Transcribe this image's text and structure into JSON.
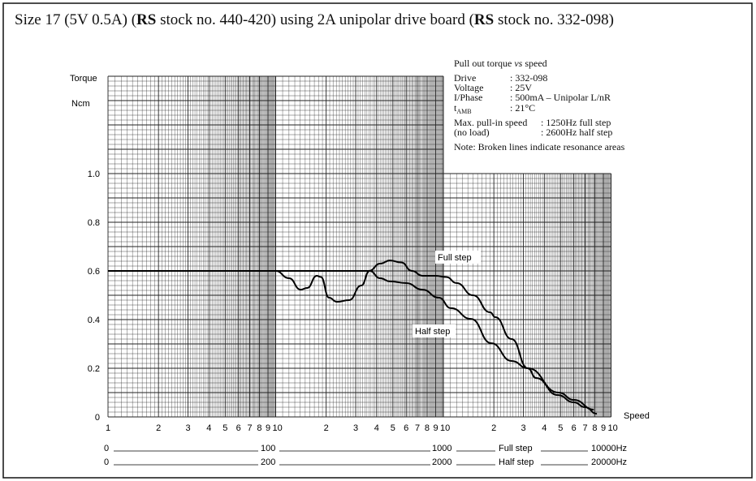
{
  "title": {
    "pre1": "Size 17 (5V 0.5A) (",
    "rs1": "RS",
    "mid": " stock no. 440-420) using 2A unipolar drive board (",
    "rs2": "RS",
    "post": " stock no. 332-098)"
  },
  "info": {
    "heading_pre": "Pull out torque ",
    "heading_vs": "vs",
    "heading_post": " speed",
    "rows": [
      {
        "label": "Drive",
        "value": ": 332-098"
      },
      {
        "label": "Voltage",
        "value": ": 25V"
      },
      {
        "label": "I/Phase",
        "value": ": 500mA – Unipolar L/nR"
      },
      {
        "label": "t",
        "sub": "AMB",
        "value": ": 21°C"
      }
    ],
    "pullin_label": "Max. pull-in speed",
    "pullin_full": ":  1250Hz full step",
    "noload_label": "(no load)",
    "pullin_half": ":  2600Hz half step",
    "note": "Note: Broken lines indicate resonance areas"
  },
  "chart_data": {
    "type": "line",
    "title": "Pull out torque vs speed",
    "ylabel": "Torque",
    "yunit": "Ncm",
    "xlabel": "Speed",
    "xscale": "log",
    "xlim": [
      1,
      1000
    ],
    "ylim": [
      0,
      1.4
    ],
    "yticks": [
      0,
      0.2,
      0.4,
      0.6,
      0.8,
      1.0
    ],
    "ytick_labels": [
      "0",
      "0.2",
      "0.4",
      "0.6",
      "0.8",
      "1.0"
    ],
    "xticks": [
      1,
      2,
      3,
      4,
      5,
      6,
      7,
      8,
      9,
      10,
      20,
      30,
      40,
      50,
      60,
      70,
      80,
      90,
      100,
      200,
      300,
      400,
      500,
      600,
      700,
      800,
      900,
      1000
    ],
    "xtick_labels": [
      "1",
      "2",
      "3",
      "4",
      "5",
      "6",
      "7",
      "8",
      "9",
      "10",
      "2",
      "3",
      "4",
      "5",
      "6",
      "7",
      "8",
      "9",
      "10",
      "2",
      "3",
      "4",
      "5",
      "6",
      "7",
      "8",
      "9",
      "10"
    ],
    "grid": true,
    "series": [
      {
        "name": "Full step",
        "x": [
          1,
          10,
          20,
          30,
          36,
          42,
          48,
          56,
          65,
          75,
          90,
          104,
          120,
          150,
          190,
          204,
          255,
          319,
          357,
          480,
          600,
          700,
          823
        ],
        "y": [
          0.6,
          0.6,
          0.6,
          0.6,
          0.6,
          0.63,
          0.643,
          0.635,
          0.6,
          0.58,
          0.58,
          0.575,
          0.55,
          0.5,
          0.43,
          0.41,
          0.32,
          0.2,
          0.16,
          0.09,
          0.06,
          0.04,
          0.013
        ]
      },
      {
        "name": "Half step",
        "x": [
          1,
          10,
          12,
          14.1,
          15.4,
          17.6,
          18.6,
          20.8,
          23.2,
          27.4,
          32.4,
          36.3,
          42,
          48,
          60,
          75,
          94,
          111,
          146,
          193,
          255,
          319,
          487,
          600,
          790
        ],
        "y": [
          0.6,
          0.6,
          0.57,
          0.523,
          0.53,
          0.58,
          0.575,
          0.49,
          0.473,
          0.48,
          0.54,
          0.6,
          0.57,
          0.557,
          0.55,
          0.523,
          0.49,
          0.447,
          0.403,
          0.303,
          0.23,
          0.2,
          0.1,
          0.07,
          0.03
        ],
        "dashed_range": [
          17.6,
          20.8
        ]
      }
    ],
    "annotations": [
      "Full step",
      "Half step"
    ],
    "secondary_scales": [
      {
        "values": [
          "0",
          "100",
          "1000"
        ],
        "label": "Full step",
        "end": "10000Hz"
      },
      {
        "values": [
          "0",
          "200",
          "2000"
        ],
        "label": "Half step",
        "end": "20000Hz"
      }
    ]
  }
}
